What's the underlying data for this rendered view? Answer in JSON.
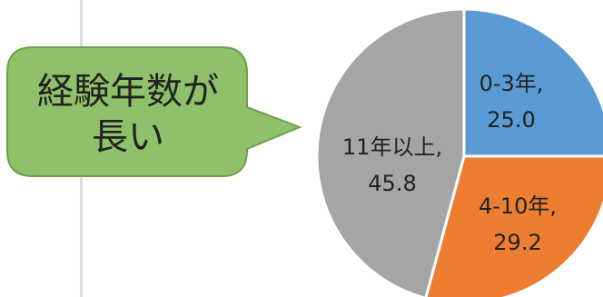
{
  "callout": {
    "line1": "経験年数が",
    "line2": "長い"
  },
  "chart_data": {
    "type": "pie",
    "categories": [
      "0-3年",
      "4-10年",
      "11年以上"
    ],
    "values": [
      25.0,
      29.2,
      45.8
    ],
    "colors": [
      "#5b9bd5",
      "#ed7d31",
      "#a5a5a5"
    ],
    "labels": [
      {
        "line1": "0-3年,",
        "line2": "25.0"
      },
      {
        "line1": "4-10年,",
        "line2": "29.2"
      },
      {
        "line1": "11年以上,",
        "line2": "45.8"
      }
    ]
  }
}
